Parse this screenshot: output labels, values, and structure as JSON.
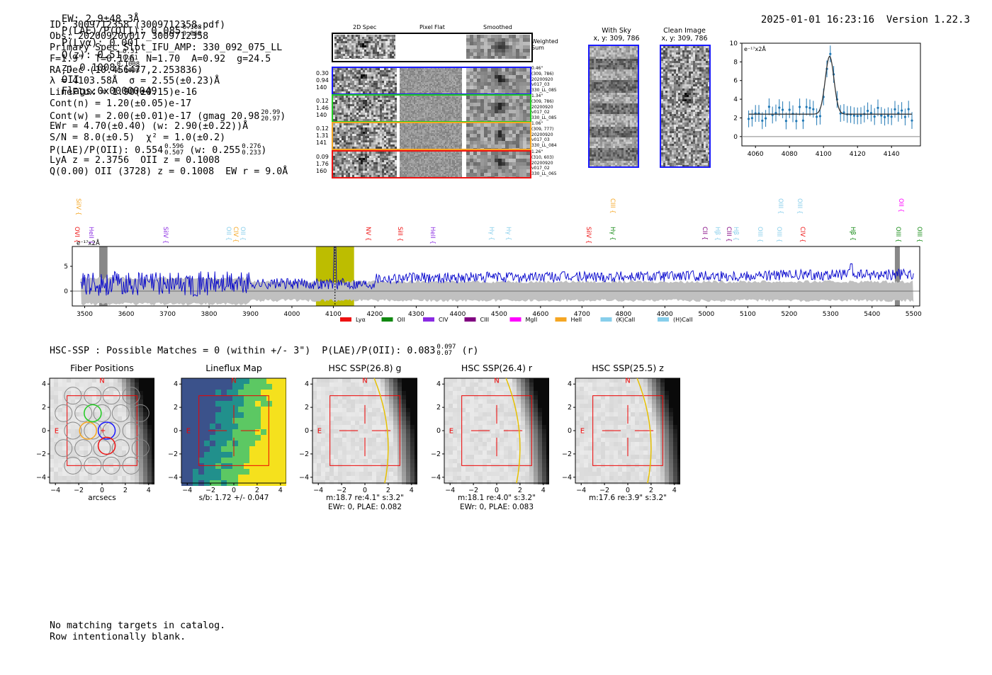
{
  "header": {
    "ew": "EW: 2.9±48.3Å",
    "plae_label": "P(LAE)/P(OII): 0.085",
    "plae_hi": "0.108",
    "plae_lo": "0.069",
    "plya": "P(Lyα): 0.001",
    "qz_label": "Q(z): 0.51",
    "qz_hi": "0.51",
    "qz_lo": "0.51",
    "z_label": "z: 0.1008",
    "z_hi": "0.1008",
    "z_lo": "0.1008",
    "z_line": "OII",
    "flags": "Flags:0x00000049",
    "timestamp": "2025-01-01 16:23:16",
    "version": "Version 1.22.3"
  },
  "info": {
    "id": "ID: 3009712358 (3009712358.pdf)",
    "obs": "Obs: 20200920v017_3009712358",
    "slot": "Primary Spec_Slot_IFU_AMP: 330_092_075_LL",
    "fiber": "F=1.9\"  T=0.126  N=1.70  A=0.92  g=24.5",
    "radec": "RA,Dec (10.456477,2.253836)",
    "lambda": "λ = 4103.58Å  σ = 2.55(±0.23)Å",
    "lineflux": "LineFlux = 1.90(±0.15)e-16",
    "contn": "Cont(n) = 1.20(±0.05)e-17",
    "contw": "Cont(w) = 2.00(±0.01)e-17 (gmag 20.98",
    "contw_hi": "20.99",
    "contw_lo": "20.97",
    "contw_end": ")",
    "ewr": "EWr = 4.70(±0.40) (w: 2.90(±0.22))Å",
    "sn": "S/N = 8.0(±0.5)  χ² = 1.0(±0.2)",
    "plae": "P(LAE)/P(OII): 0.554",
    "plae_hi": "0.596",
    "plae_lo": "0.507",
    "plae_w": "(w: 0.255",
    "plae_w_hi": "0.276",
    "plae_w_lo": "0.233",
    "plae_end": ")",
    "lya": "LyA z = 2.3756  OII z = 0.1008",
    "q": "Q(0.00) OII (3728) z = 0.1008  EW r = 9.0Å"
  },
  "cutouts": {
    "col_2d": "2D Spec",
    "col_flat": "Pixel Flat",
    "col_smooth": "Smoothed",
    "weighted": [
      "Weighted",
      "Sum"
    ],
    "rows": [
      {
        "weight": [
          "0.30",
          "0.94",
          "140"
        ],
        "meta": [
          "0.46\"",
          "(309, 786)",
          "20200920",
          "v017_03",
          "330_LL_085"
        ],
        "color": "#1a1aff"
      },
      {
        "weight": [
          "0.12",
          "1.46",
          "140"
        ],
        "meta": [
          "1.34\"",
          "(309, 786)",
          "20200920",
          "v017_02",
          "330_LL_085"
        ],
        "color": "#22cc22"
      },
      {
        "weight": [
          "0.12",
          "1.31",
          "141"
        ],
        "meta": [
          "1.06\"",
          "(309, 777)",
          "20200920",
          "v017_03",
          "330_LL_084"
        ],
        "color": "#f5a623"
      },
      {
        "weight": [
          "0.09",
          "1.76",
          "160"
        ],
        "meta": [
          "1.26\"",
          "(310, 603)",
          "20200920",
          "v017_02",
          "330_LL_065"
        ],
        "color": "#ee1111"
      }
    ]
  },
  "with_sky": {
    "title": "With Sky",
    "xy": "x, y: 309, 786"
  },
  "clean": {
    "title": "Clean Image",
    "xy": "x, y: 309, 786"
  },
  "zoom_plot": {
    "unit": "e⁻¹⁷x2Å",
    "yticks": [
      "10",
      "8",
      "6",
      "4",
      "2",
      "0"
    ],
    "xticks": [
      "4060",
      "4080",
      "4100",
      "4120",
      "4140"
    ]
  },
  "spectrum": {
    "unit": "e⁻¹⁷x2Å",
    "yticks": [
      "5",
      "0"
    ],
    "xticks": [
      "3500",
      "3600",
      "3700",
      "3800",
      "3900",
      "4000",
      "4100",
      "4200",
      "4300",
      "4400",
      "4500",
      "4600",
      "4700",
      "4800",
      "4900",
      "5000",
      "5100",
      "5200",
      "5300",
      "5400",
      "5500"
    ],
    "legend": [
      {
        "label": "Lyα",
        "color": "#ee1111"
      },
      {
        "label": "OII",
        "color": "#118811"
      },
      {
        "label": "CIV",
        "color": "#8a2be2"
      },
      {
        "label": "CIII",
        "color": "#800080"
      },
      {
        "label": "MgII",
        "color": "#ff00ff"
      },
      {
        "label": "HeII",
        "color": "#f5a623"
      },
      {
        "label": "(K)CaII",
        "color": "#87ceeb"
      },
      {
        "label": "(H)CaII",
        "color": "#87ceeb"
      }
    ],
    "lines_row1": [
      {
        "label": "OVI",
        "color": "#ee1111",
        "x": 106
      },
      {
        "label": "HeII",
        "color": "#8a2be2",
        "x": 126
      },
      {
        "label": "SiIV",
        "color": "#8a2be2",
        "x": 231
      },
      {
        "label": "OII",
        "color": "#87ceeb",
        "x": 320
      },
      {
        "label": "CIV",
        "color": "#f5a623",
        "x": 330
      },
      {
        "label": "OII",
        "color": "#87ceeb",
        "x": 340
      },
      {
        "label": "NV",
        "color": "#ee1111",
        "x": 517
      },
      {
        "label": "SiII",
        "color": "#ee1111",
        "x": 562
      },
      {
        "label": "HeII",
        "color": "#8a2be2",
        "x": 608
      },
      {
        "label": "Hγ",
        "color": "#87ceeb",
        "x": 691
      },
      {
        "label": "Hγ",
        "color": "#87ceeb",
        "x": 715
      },
      {
        "label": "SiIV",
        "color": "#ee1111",
        "x": 828
      },
      {
        "label": "Hγ",
        "color": "#118811",
        "x": 862
      },
      {
        "label": "CII",
        "color": "#800080",
        "x": 992
      },
      {
        "label": "Hβ",
        "color": "#87ceeb",
        "x": 1010
      },
      {
        "label": "CIII",
        "color": "#800080",
        "x": 1026
      },
      {
        "label": "Hβ",
        "color": "#87ceeb",
        "x": 1036
      },
      {
        "label": "OIII",
        "color": "#87ceeb",
        "x": 1070
      },
      {
        "label": "OIII",
        "color": "#87ceeb",
        "x": 1097
      },
      {
        "label": "CIV",
        "color": "#ee1111",
        "x": 1130
      },
      {
        "label": "Hβ",
        "color": "#118811",
        "x": 1201
      },
      {
        "label": "OIII",
        "color": "#118811",
        "x": 1265
      },
      {
        "label": "OIII",
        "color": "#118811",
        "x": 1295
      }
    ],
    "lines_row2": [
      {
        "label": "SiIV",
        "color": "#f5a623",
        "x": 108
      },
      {
        "label": "CIII",
        "color": "#f5a623",
        "x": 862
      },
      {
        "label": "OIII",
        "color": "#87ceeb",
        "x": 1099
      },
      {
        "label": "OIII",
        "color": "#87ceeb",
        "x": 1126
      },
      {
        "label": "OII",
        "color": "#ff00ff",
        "x": 1269
      }
    ]
  },
  "hsc": {
    "summary": "HSC-SSP : Possible Matches = 0 (within +/- 3\")  P(LAE)/P(OII): 0.083",
    "summary_hi": "0.097",
    "summary_lo": "0.07",
    "summary_end": "(r)",
    "panels": [
      {
        "title": "Fiber Positions",
        "cap1": "arcsecs",
        "cap2": ""
      },
      {
        "title": "Lineflux Map",
        "cap1": "s/b: 1.72 +/- 0.047",
        "cap2": ""
      },
      {
        "title": "HSC SSP(26.8) g",
        "cap1": "m:18.7  re:4.1\"  s:3.2\"",
        "cap2": "EWr: 0, PLAE: 0.082"
      },
      {
        "title": "HSC SSP(26.4) r",
        "cap1": "m:18.1  re:4.0\"  s:3.2\"",
        "cap2": "EWr: 0, PLAE: 0.083"
      },
      {
        "title": "HSC SSP(25.5) z",
        "cap1": "m:17.6  re:3.9\"  s:3.2\"",
        "cap2": ""
      }
    ],
    "yticks": [
      "4",
      "2",
      "0",
      "−2",
      "−4"
    ],
    "xticks": [
      "−4",
      "−2",
      "0",
      "2",
      "4"
    ],
    "north": "N",
    "east": "E"
  },
  "footer": {
    "line1": "No matching targets in catalog.",
    "line2": "Row intentionally blank."
  }
}
